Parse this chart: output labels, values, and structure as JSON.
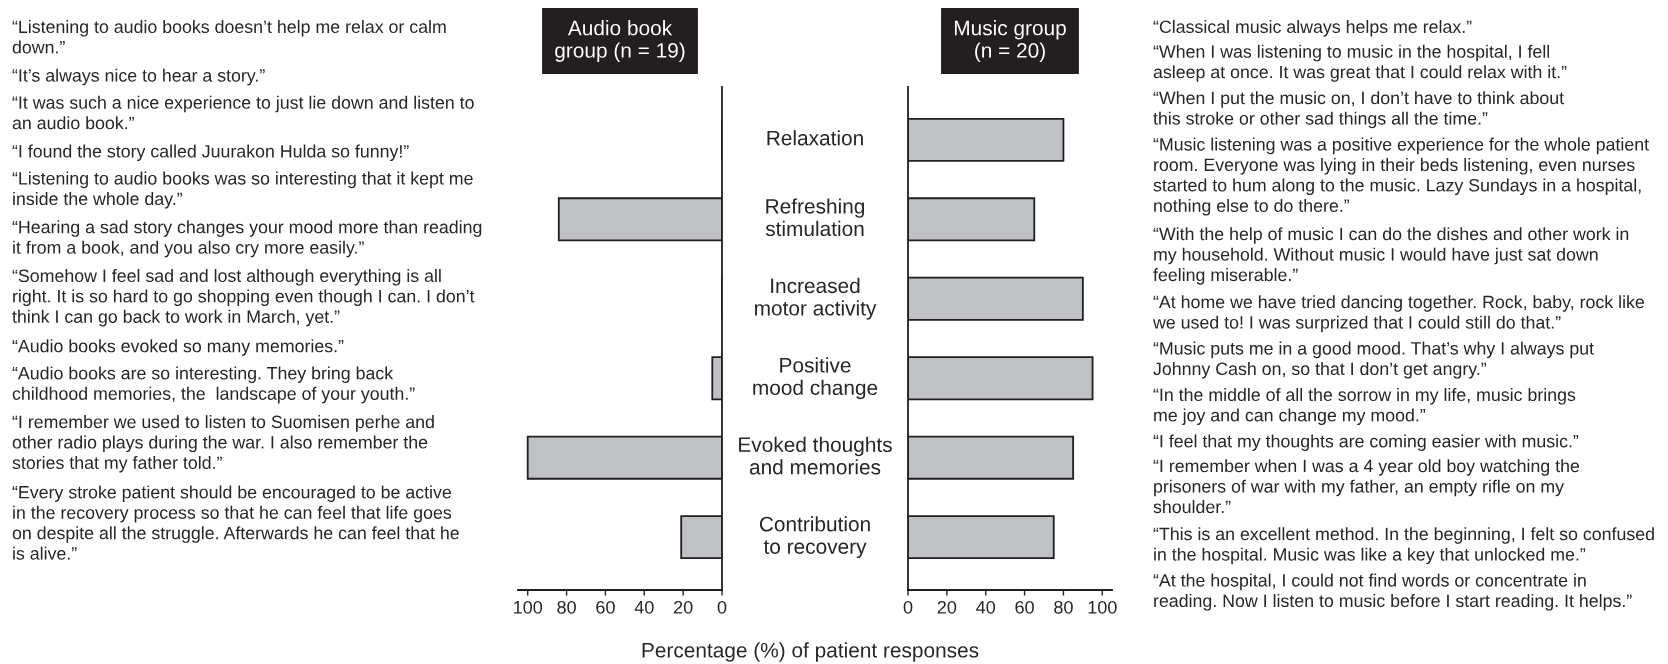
{
  "chart_data": [
    {
      "type": "bar",
      "orientation": "horizontal",
      "title": "Audio book\ngroup (n = 19)",
      "xlabel": "Percentage (%) of patient responses",
      "categories": [
        "Relaxation",
        "Refreshing\nstimulation",
        "Increased\nmotor activity",
        "Positive\nmood change",
        "Evoked thoughts\nand memories",
        "Contribution\nto recovery"
      ],
      "values": [
        0,
        84,
        0,
        5,
        100,
        21
      ],
      "color": "#c0c1c5",
      "xlim": [
        105,
        0
      ],
      "xticks": [
        100,
        80,
        60,
        40,
        20,
        0
      ],
      "grid": false,
      "annotations": [
        "“Listening to audio books doesn’t help me relax or calm\ndown.”",
        "“It’s always nice to hear a story.”",
        "“It was such a nice experience to just lie down and listen to\nan audio book.”",
        "“I found the story called Juurakon Hulda so funny!”",
        "“Listening to audio books was so interesting that it kept me\ninside the whole day.”",
        "“Hearing a sad story changes your mood more than reading\nit from a book, and you also cry more easily.”",
        "“Somehow I feel sad and lost although everything is all\nright. It is so hard to go shopping even though I can. I don’t\nthink I can go back to work in March, yet.”",
        "“Audio books evoked so many memories.”",
        "“Audio books are so interesting. They bring back\nchildhood memories, the  landscape of your youth.”",
        "“I remember we used to listen to Suomisen perhe and\nother radio plays during the war. I also remember the\nstories that my father told.”",
        "“Every stroke patient should be encouraged to be active\nin the recovery process so that he can feel that life goes\non despite all the struggle. Afterwards he can feel that he\nis alive.”"
      ]
    },
    {
      "type": "bar",
      "orientation": "horizontal",
      "title": "Music group\n(n = 20)",
      "values": [
        80,
        65,
        90,
        95,
        85,
        75
      ],
      "color": "#c0c1c5",
      "xlim": [
        0,
        105
      ],
      "xticks": [
        0,
        20,
        40,
        60,
        80,
        100
      ],
      "grid": false,
      "annotations": [
        "“Classical music always helps me relax.”",
        "“When I was listening to music in the hospital, I fell\nasleep at once. It was great that I could relax with it.”",
        "“When I put the music on, I don’t have to think about\nthis stroke or other sad things all the time.”",
        "“Music listening was a positive experience for the whole patient\nroom. Everyone was lying in their beds listening, even nurses\nstarted to hum along to the music. Lazy Sundays in a hospital,\nnothing else to do there.”",
        "“With the help of music I can do the dishes and other work in\nmy household. Without music I would have just sat down\nfeeling miserable.”",
        "“At home we have tried dancing together. Rock, baby, rock like\nwe used to! I was surprized that I could still do that.”",
        "“Music puts me in a good mood. That’s why I always put\nJohnny Cash on, so that I don’t get angry.”",
        "“In the middle of all the sorrow in my life, music brings\nme joy and can change my mood.”",
        "“I feel that my thoughts are coming easier with music.”",
        "“I remember when I was a 4 year old boy watching the\nprisoners of war with my father, an empty rifle on my\nshoulder.”",
        "“This is an excellent method. In the beginning, I felt so confused\nin the hospital. Music was like a key that unlocked me.”",
        "“At the hospital, I could not find words or concentrate in\nreading. Now I listen to music before I start reading. It helps.”"
      ]
    }
  ]
}
